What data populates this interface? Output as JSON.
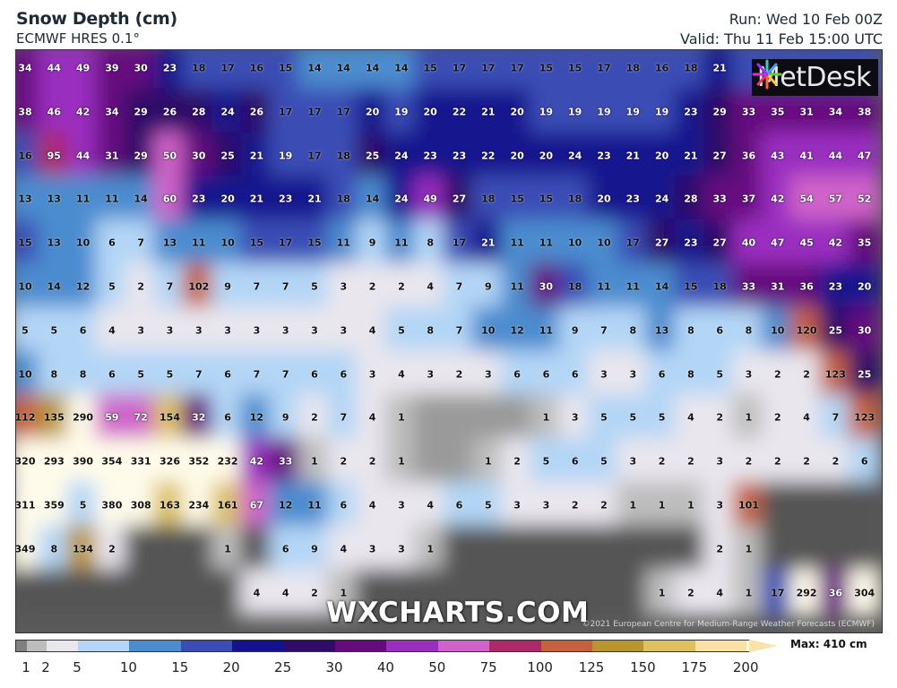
{
  "header": {
    "title": "Snow Depth (cm)",
    "subtitle": "ECMWF HRES 0.1°",
    "run": "Run: Wed 10 Feb 00Z",
    "valid": "Valid: Thu 11 Feb 15:00 UTC"
  },
  "branding": {
    "logo": "MetDesk",
    "watermark": "WXCHARTS.COM",
    "copyright": "©2021 European Centre for Medium-Range Weather Forecasts (ECMWF)"
  },
  "legend": {
    "max_label": "Max: 410 cm",
    "levels": [
      {
        "from": 0,
        "to": 1,
        "color": "#808080"
      },
      {
        "from": 1,
        "to": 2,
        "color": "#bdbdbd"
      },
      {
        "from": 2,
        "to": 5,
        "color": "#e9e6ee"
      },
      {
        "from": 5,
        "to": 10,
        "color": "#b3d6f6"
      },
      {
        "from": 10,
        "to": 15,
        "color": "#4b8ccf"
      },
      {
        "from": 15,
        "to": 20,
        "color": "#3b4db5"
      },
      {
        "from": 20,
        "to": 25,
        "color": "#14128e"
      },
      {
        "from": 25,
        "to": 30,
        "color": "#2f0c68"
      },
      {
        "from": 30,
        "to": 40,
        "color": "#660b7f"
      },
      {
        "from": 40,
        "to": 50,
        "color": "#9a2fbf"
      },
      {
        "from": 50,
        "to": 75,
        "color": "#d063c9"
      },
      {
        "from": 75,
        "to": 100,
        "color": "#ad2a68"
      },
      {
        "from": 100,
        "to": 125,
        "color": "#c6613f"
      },
      {
        "from": 125,
        "to": 150,
        "color": "#b9952f"
      },
      {
        "from": 150,
        "to": 175,
        "color": "#dcc061"
      },
      {
        "from": 175,
        "to": 200,
        "color": "#fae1a3"
      }
    ],
    "tick_labels": [
      "1",
      "2",
      "5",
      "10",
      "15",
      "20",
      "25",
      "30",
      "40",
      "50",
      "75",
      "100",
      "125",
      "150",
      "175",
      "200"
    ],
    "over_color": "#fffbea",
    "no_snow_color": "#4d4d4d"
  },
  "grid": [
    [
      34,
      44,
      49,
      39,
      30,
      23,
      18,
      17,
      16,
      15,
      14,
      14,
      14,
      14,
      15,
      17,
      17,
      17,
      15,
      15,
      17,
      18,
      16,
      18,
      21,
      null,
      null,
      null,
      null,
      null
    ],
    [
      38,
      46,
      42,
      34,
      29,
      26,
      28,
      24,
      26,
      17,
      17,
      17,
      20,
      19,
      20,
      22,
      21,
      20,
      19,
      19,
      19,
      19,
      19,
      23,
      29,
      33,
      35,
      31,
      34,
      38
    ],
    [
      16,
      95,
      44,
      31,
      29,
      50,
      30,
      25,
      21,
      19,
      17,
      18,
      25,
      24,
      23,
      23,
      22,
      20,
      20,
      24,
      23,
      21,
      20,
      21,
      27,
      36,
      43,
      41,
      44,
      47
    ],
    [
      13,
      13,
      11,
      11,
      14,
      60,
      23,
      20,
      21,
      23,
      21,
      18,
      14,
      24,
      49,
      27,
      18,
      15,
      15,
      18,
      20,
      23,
      24,
      28,
      33,
      37,
      42,
      54,
      57,
      52
    ],
    [
      15,
      13,
      10,
      6,
      7,
      13,
      11,
      10,
      15,
      17,
      15,
      11,
      9,
      11,
      8,
      17,
      21,
      11,
      11,
      10,
      10,
      17,
      27,
      23,
      27,
      40,
      47,
      45,
      42,
      35
    ],
    [
      10,
      14,
      12,
      5,
      2,
      7,
      102,
      9,
      7,
      7,
      5,
      3,
      2,
      2,
      4,
      7,
      9,
      11,
      30,
      18,
      11,
      11,
      14,
      15,
      18,
      33,
      31,
      36,
      23,
      20
    ],
    [
      5,
      5,
      6,
      4,
      3,
      3,
      3,
      3,
      3,
      3,
      3,
      3,
      4,
      5,
      8,
      7,
      10,
      12,
      11,
      9,
      7,
      8,
      13,
      8,
      6,
      8,
      10,
      120,
      25,
      30
    ],
    [
      10,
      8,
      8,
      6,
      5,
      5,
      7,
      6,
      7,
      7,
      6,
      6,
      3,
      4,
      3,
      2,
      3,
      6,
      6,
      6,
      3,
      3,
      6,
      8,
      5,
      3,
      2,
      2,
      123,
      25
    ],
    [
      112,
      135,
      290,
      59,
      72,
      154,
      32,
      6,
      12,
      9,
      2,
      7,
      4,
      1,
      null,
      null,
      null,
      null,
      1,
      3,
      5,
      5,
      5,
      4,
      2,
      1,
      2,
      4,
      7,
      123
    ],
    [
      320,
      293,
      390,
      354,
      331,
      326,
      352,
      232,
      42,
      33,
      1,
      2,
      2,
      1,
      null,
      null,
      1,
      2,
      5,
      6,
      5,
      3,
      2,
      2,
      3,
      2,
      2,
      2,
      2,
      6
    ],
    [
      311,
      359,
      5,
      380,
      308,
      163,
      234,
      161,
      67,
      12,
      11,
      6,
      4,
      3,
      4,
      6,
      5,
      3,
      3,
      2,
      2,
      1,
      1,
      1,
      3,
      101,
      null,
      null,
      null,
      null
    ],
    [
      349,
      8,
      134,
      2,
      null,
      null,
      null,
      1,
      null,
      6,
      9,
      4,
      3,
      3,
      1,
      null,
      null,
      null,
      null,
      null,
      null,
      null,
      null,
      null,
      2,
      1,
      null,
      null,
      null,
      null
    ],
    [
      null,
      null,
      null,
      null,
      null,
      null,
      null,
      null,
      4,
      4,
      2,
      1,
      null,
      null,
      null,
      null,
      null,
      null,
      null,
      null,
      null,
      null,
      1,
      2,
      4,
      1,
      17,
      292,
      36,
      304
    ]
  ]
}
